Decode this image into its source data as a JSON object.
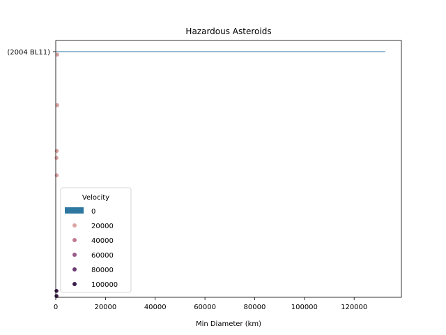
{
  "chart_data": {
    "type": "scatter",
    "title": "Hazardous Asteroids",
    "xlabel": "Min Diameter (km)",
    "ylabel": "",
    "xlim": [
      0,
      139000
    ],
    "xticks": [
      0,
      20000,
      40000,
      60000,
      80000,
      100000,
      120000
    ],
    "ylim": [
      0,
      100
    ],
    "y_category_label": "(2004 BL11)",
    "bar": {
      "category": "(2004 BL11)",
      "value": 132500,
      "color": "#2e77a0"
    },
    "points": [
      {
        "x": 300,
        "y": 0.5,
        "velocity": 108000
      },
      {
        "x": 300,
        "y": 2.5,
        "velocity": 104000
      },
      {
        "x": 400,
        "y": 47.5,
        "velocity": 18000
      },
      {
        "x": 300,
        "y": 54.3,
        "velocity": 16000
      },
      {
        "x": 400,
        "y": 57.0,
        "velocity": 19000
      },
      {
        "x": 600,
        "y": 74.8,
        "velocity": 22000
      },
      {
        "x": 600,
        "y": 94.5,
        "velocity": 15000
      }
    ],
    "legend": {
      "title": "Velocity",
      "position": "lower-left",
      "items": [
        {
          "label": "0",
          "marker": "bar",
          "color": "#2e77a0"
        },
        {
          "label": "20000",
          "marker": "dot",
          "color": "#dda4a5"
        },
        {
          "label": "40000",
          "marker": "dot",
          "color": "#c17a8e"
        },
        {
          "label": "60000",
          "marker": "dot",
          "color": "#9a5a89"
        },
        {
          "label": "80000",
          "marker": "dot",
          "color": "#6c3a74"
        },
        {
          "label": "100000",
          "marker": "dot",
          "color": "#3c1e4c"
        }
      ]
    },
    "grid": false
  }
}
